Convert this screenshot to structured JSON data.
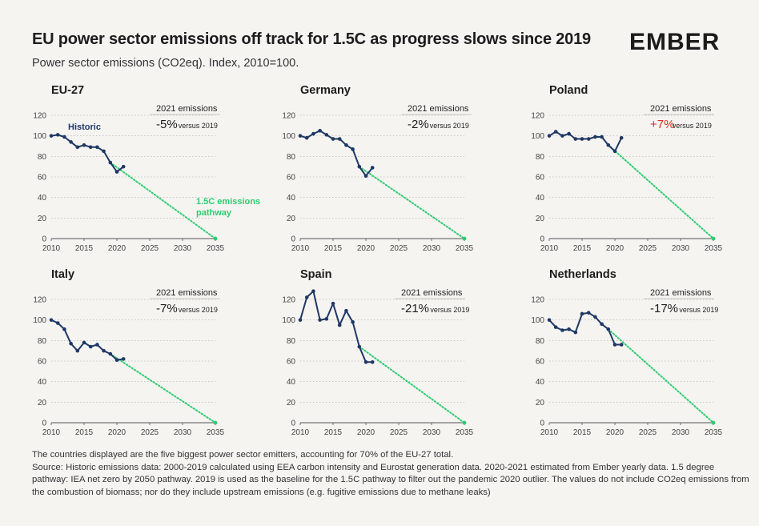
{
  "header": {
    "title": "EU power sector emissions off track for 1.5C as progress slows since 2019",
    "subtitle": "Power sector emissions (CO2eq). Index, 2010=100.",
    "logo_text": "EMBER"
  },
  "footer": {
    "line1": "The countries displayed are the five biggest power sector emitters, accounting for 70% of the EU-27 total.",
    "line2": "Source: Historic emissions data: 2000-2019 calculated using EEA carbon intensity and Eurostat generation data. 2020-2021 estimated from Ember yearly data. 1.5 degree",
    "line3": "pathway: IEA net zero by 2050 pathway. 2019 is used as the baseline for the 1.5C pathway to filter out the pandemic 2020 outlier. The values do not include CO2eq emissions from",
    "line4": "the combustion of biomass; nor do they include upstream emissions (e.g. fugitive emissions due to methane leaks)"
  },
  "colors": {
    "historic": "#1f3864",
    "pathway": "#2ecc71",
    "negative_change": "#1c1c1c",
    "positive_change": "#d62d20",
    "grid": "#9a9a9a"
  },
  "chart_data": [
    {
      "type": "line",
      "title": "EU-27",
      "x_ticks": [
        2010,
        2015,
        2020,
        2025,
        2030,
        2035
      ],
      "y_ticks": [
        0,
        20,
        40,
        60,
        80,
        100,
        120
      ],
      "xlim": [
        2010,
        2035
      ],
      "ylim": [
        0,
        120
      ],
      "series": [
        {
          "name": "Historic",
          "x": [
            2010,
            2011,
            2012,
            2013,
            2014,
            2015,
            2016,
            2017,
            2018,
            2019,
            2020,
            2021
          ],
          "values": [
            100,
            101,
            99,
            94,
            89,
            91,
            89,
            89,
            85,
            74,
            65,
            70
          ]
        },
        {
          "name": "1.5C emissions pathway",
          "x": [
            2019,
            2035
          ],
          "values": [
            74,
            0
          ]
        }
      ],
      "annotation": {
        "label": "2021 emissions",
        "value": "-5%",
        "suffix": "versus 2019"
      },
      "series_labels": {
        "historic": "Historic",
        "pathway_line1": "1.5C emissions",
        "pathway_line2": "pathway"
      }
    },
    {
      "type": "line",
      "title": "Germany",
      "x_ticks": [
        2010,
        2015,
        2020,
        2025,
        2030,
        2035
      ],
      "y_ticks": [
        0,
        20,
        40,
        60,
        80,
        100,
        120
      ],
      "xlim": [
        2010,
        2035
      ],
      "ylim": [
        0,
        120
      ],
      "series": [
        {
          "name": "Historic",
          "x": [
            2010,
            2011,
            2012,
            2013,
            2014,
            2015,
            2016,
            2017,
            2018,
            2019,
            2020,
            2021
          ],
          "values": [
            100,
            98,
            102,
            105,
            101,
            97,
            97,
            91,
            87,
            70,
            61,
            69
          ]
        },
        {
          "name": "1.5C emissions pathway",
          "x": [
            2019,
            2035
          ],
          "values": [
            70,
            0
          ]
        }
      ],
      "annotation": {
        "label": "2021 emissions",
        "value": "-2%",
        "suffix": "versus 2019"
      }
    },
    {
      "type": "line",
      "title": "Poland",
      "x_ticks": [
        2010,
        2015,
        2020,
        2025,
        2030,
        2035
      ],
      "y_ticks": [
        0,
        20,
        40,
        60,
        80,
        100,
        120
      ],
      "xlim": [
        2010,
        2035
      ],
      "ylim": [
        0,
        120
      ],
      "series": [
        {
          "name": "Historic",
          "x": [
            2010,
            2011,
            2012,
            2013,
            2014,
            2015,
            2016,
            2017,
            2018,
            2019,
            2020,
            2021
          ],
          "values": [
            100,
            104,
            100,
            102,
            97,
            97,
            97,
            99,
            99,
            91,
            85,
            98
          ]
        },
        {
          "name": "1.5C emissions pathway",
          "x": [
            2019,
            2035
          ],
          "values": [
            91,
            0
          ]
        }
      ],
      "annotation": {
        "label": "2021 emissions",
        "value": "+7%",
        "suffix": "versus 2019",
        "positive": true
      }
    },
    {
      "type": "line",
      "title": "Italy",
      "x_ticks": [
        2010,
        2015,
        2020,
        2025,
        2030,
        2035
      ],
      "y_ticks": [
        0,
        20,
        40,
        60,
        80,
        100,
        120
      ],
      "xlim": [
        2010,
        2035
      ],
      "ylim": [
        0,
        120
      ],
      "series": [
        {
          "name": "Historic",
          "x": [
            2010,
            2011,
            2012,
            2013,
            2014,
            2015,
            2016,
            2017,
            2018,
            2019,
            2020,
            2021
          ],
          "values": [
            100,
            97,
            91,
            77,
            70,
            78,
            74,
            76,
            70,
            67,
            61,
            62
          ]
        },
        {
          "name": "1.5C emissions pathway",
          "x": [
            2019,
            2035
          ],
          "values": [
            67,
            0
          ]
        }
      ],
      "annotation": {
        "label": "2021 emissions",
        "value": "-7%",
        "suffix": "versus 2019"
      }
    },
    {
      "type": "line",
      "title": "Spain",
      "x_ticks": [
        2010,
        2015,
        2020,
        2025,
        2030,
        2035
      ],
      "y_ticks": [
        0,
        20,
        40,
        60,
        80,
        100,
        120
      ],
      "xlim": [
        2010,
        2035
      ],
      "ylim": [
        0,
        120
      ],
      "series": [
        {
          "name": "Historic",
          "x": [
            2010,
            2011,
            2012,
            2013,
            2014,
            2015,
            2016,
            2017,
            2018,
            2019,
            2020,
            2021
          ],
          "values": [
            100,
            122,
            128,
            100,
            101,
            116,
            95,
            109,
            98,
            74,
            59,
            59
          ]
        },
        {
          "name": "1.5C emissions pathway",
          "x": [
            2019,
            2035
          ],
          "values": [
            74,
            0
          ]
        }
      ],
      "annotation": {
        "label": "2021 emissions",
        "value": "-21%",
        "suffix": "versus 2019"
      }
    },
    {
      "type": "line",
      "title": "Netherlands",
      "x_ticks": [
        2010,
        2015,
        2020,
        2025,
        2030,
        2035
      ],
      "y_ticks": [
        0,
        20,
        40,
        60,
        80,
        100,
        120
      ],
      "xlim": [
        2010,
        2035
      ],
      "ylim": [
        0,
        120
      ],
      "series": [
        {
          "name": "Historic",
          "x": [
            2010,
            2011,
            2012,
            2013,
            2014,
            2015,
            2016,
            2017,
            2018,
            2019,
            2020,
            2021
          ],
          "values": [
            100,
            93,
            90,
            91,
            88,
            106,
            107,
            103,
            96,
            91,
            76,
            76
          ]
        },
        {
          "name": "1.5C emissions pathway",
          "x": [
            2019,
            2035
          ],
          "values": [
            91,
            0
          ]
        }
      ],
      "annotation": {
        "label": "2021 emissions",
        "value": "-17%",
        "suffix": "versus 2019"
      }
    }
  ]
}
